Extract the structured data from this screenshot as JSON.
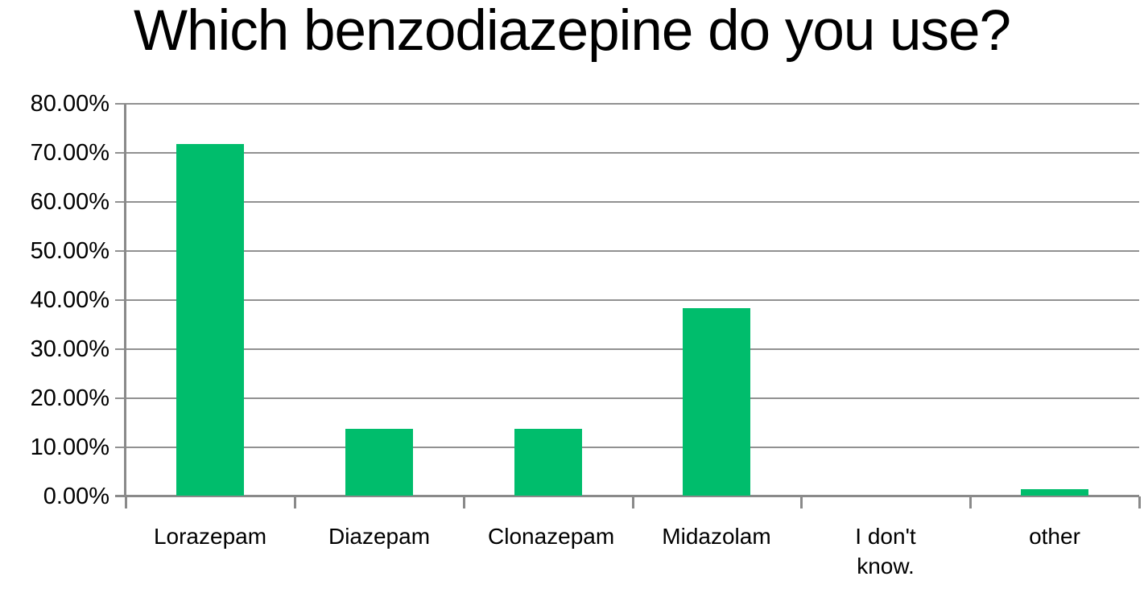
{
  "chart_data": {
    "type": "bar",
    "title": "Which benzodiazepine do you use?",
    "categories": [
      "Lorazepam",
      "Diazepam",
      "Clonazepam",
      "Midazolam",
      "I don't know.",
      "other"
    ],
    "values": [
      71.6,
      13.6,
      13.6,
      38.2,
      0,
      1.3
    ],
    "value_unit": "%",
    "xlabel": "",
    "ylabel": "",
    "ylim": [
      0,
      80
    ],
    "ytick_step": 10,
    "ytick_labels": [
      "0.00%",
      "10.00%",
      "20.00%",
      "30.00%",
      "40.00%",
      "50.00%",
      "60.00%",
      "70.00%",
      "80.00%"
    ],
    "grid": "horizontal",
    "legend": "none",
    "colors": {
      "bar": "#00BD6C",
      "gridline": "#919191",
      "axis": "#8A8A8A",
      "text": "#000000",
      "background": "#FFFFFF"
    }
  }
}
